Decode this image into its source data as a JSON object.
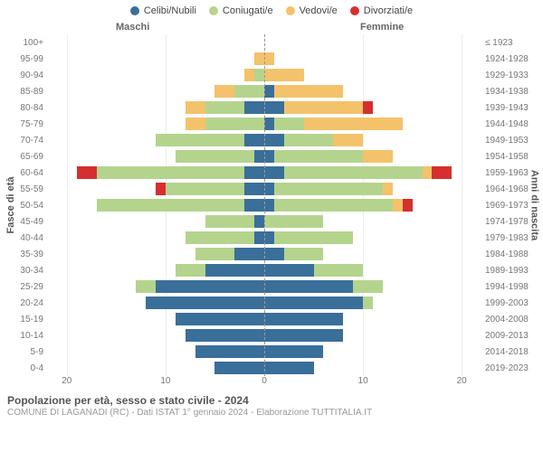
{
  "chart": {
    "type": "population-pyramid",
    "legend": [
      {
        "label": "Celibi/Nubili",
        "color": "#3a6f9a"
      },
      {
        "label": "Coniugati/e",
        "color": "#b4d48d"
      },
      {
        "label": "Vedovi/e",
        "color": "#f4c26b"
      },
      {
        "label": "Divorziati/e",
        "color": "#d62f2f"
      }
    ],
    "header_male": "Maschi",
    "header_female": "Femmine",
    "y_axis_title": "Fasce di età",
    "y2_axis_title": "Anni di nascita",
    "x_axis_max": 22,
    "x_ticks": [
      20,
      10,
      0,
      10,
      20
    ],
    "title": "Popolazione per età, sesso e stato civile - 2024",
    "subtitle": "COMUNE DI LAGANADI (RC) - Dati ISTAT 1° gennaio 2024 - Elaborazione TUTTITALIA.IT",
    "colors": {
      "celibi": "#3a6f9a",
      "coniugati": "#b4d48d",
      "vedovi": "#f4c26b",
      "divorziati": "#d62f2f",
      "grid": "#eeeeee",
      "centerline": "#999999",
      "bg": "#ffffff",
      "text_muted": "#777777"
    },
    "rows": [
      {
        "age": "100+",
        "birth": "≤ 1923",
        "m": {
          "cel": 0,
          "con": 0,
          "ved": 0,
          "div": 0
        },
        "f": {
          "cel": 0,
          "con": 0,
          "ved": 0,
          "div": 0
        }
      },
      {
        "age": "95-99",
        "birth": "1924-1928",
        "m": {
          "cel": 0,
          "con": 0,
          "ved": 1,
          "div": 0
        },
        "f": {
          "cel": 0,
          "con": 0,
          "ved": 1,
          "div": 0
        }
      },
      {
        "age": "90-94",
        "birth": "1929-1933",
        "m": {
          "cel": 0,
          "con": 1,
          "ved": 1,
          "div": 0
        },
        "f": {
          "cel": 0,
          "con": 0,
          "ved": 4,
          "div": 0
        }
      },
      {
        "age": "85-89",
        "birth": "1934-1938",
        "m": {
          "cel": 0,
          "con": 3,
          "ved": 2,
          "div": 0
        },
        "f": {
          "cel": 1,
          "con": 0,
          "ved": 7,
          "div": 0
        }
      },
      {
        "age": "80-84",
        "birth": "1939-1943",
        "m": {
          "cel": 2,
          "con": 4,
          "ved": 2,
          "div": 0
        },
        "f": {
          "cel": 2,
          "con": 0,
          "ved": 8,
          "div": 1
        }
      },
      {
        "age": "75-79",
        "birth": "1944-1948",
        "m": {
          "cel": 0,
          "con": 6,
          "ved": 2,
          "div": 0
        },
        "f": {
          "cel": 1,
          "con": 3,
          "ved": 10,
          "div": 0
        }
      },
      {
        "age": "70-74",
        "birth": "1949-1953",
        "m": {
          "cel": 2,
          "con": 9,
          "ved": 0,
          "div": 0
        },
        "f": {
          "cel": 2,
          "con": 5,
          "ved": 3,
          "div": 0
        }
      },
      {
        "age": "65-69",
        "birth": "1954-1958",
        "m": {
          "cel": 1,
          "con": 8,
          "ved": 0,
          "div": 0
        },
        "f": {
          "cel": 1,
          "con": 9,
          "ved": 3,
          "div": 0
        }
      },
      {
        "age": "60-64",
        "birth": "1959-1963",
        "m": {
          "cel": 2,
          "con": 15,
          "ved": 0,
          "div": 2
        },
        "f": {
          "cel": 2,
          "con": 14,
          "ved": 1,
          "div": 2
        }
      },
      {
        "age": "55-59",
        "birth": "1964-1968",
        "m": {
          "cel": 2,
          "con": 8,
          "ved": 0,
          "div": 1
        },
        "f": {
          "cel": 1,
          "con": 11,
          "ved": 1,
          "div": 0
        }
      },
      {
        "age": "50-54",
        "birth": "1969-1973",
        "m": {
          "cel": 2,
          "con": 15,
          "ved": 0,
          "div": 0
        },
        "f": {
          "cel": 1,
          "con": 12,
          "ved": 1,
          "div": 1
        }
      },
      {
        "age": "45-49",
        "birth": "1974-1978",
        "m": {
          "cel": 1,
          "con": 5,
          "ved": 0,
          "div": 0
        },
        "f": {
          "cel": 0,
          "con": 6,
          "ved": 0,
          "div": 0
        }
      },
      {
        "age": "40-44",
        "birth": "1979-1983",
        "m": {
          "cel": 1,
          "con": 7,
          "ved": 0,
          "div": 0
        },
        "f": {
          "cel": 1,
          "con": 8,
          "ved": 0,
          "div": 0
        }
      },
      {
        "age": "35-39",
        "birth": "1984-1988",
        "m": {
          "cel": 3,
          "con": 4,
          "ved": 0,
          "div": 0
        },
        "f": {
          "cel": 2,
          "con": 4,
          "ved": 0,
          "div": 0
        }
      },
      {
        "age": "30-34",
        "birth": "1989-1993",
        "m": {
          "cel": 6,
          "con": 3,
          "ved": 0,
          "div": 0
        },
        "f": {
          "cel": 5,
          "con": 5,
          "ved": 0,
          "div": 0
        }
      },
      {
        "age": "25-29",
        "birth": "1994-1998",
        "m": {
          "cel": 11,
          "con": 2,
          "ved": 0,
          "div": 0
        },
        "f": {
          "cel": 9,
          "con": 3,
          "ved": 0,
          "div": 0
        }
      },
      {
        "age": "20-24",
        "birth": "1999-2003",
        "m": {
          "cel": 12,
          "con": 0,
          "ved": 0,
          "div": 0
        },
        "f": {
          "cel": 10,
          "con": 1,
          "ved": 0,
          "div": 0
        }
      },
      {
        "age": "15-19",
        "birth": "2004-2008",
        "m": {
          "cel": 9,
          "con": 0,
          "ved": 0,
          "div": 0
        },
        "f": {
          "cel": 8,
          "con": 0,
          "ved": 0,
          "div": 0
        }
      },
      {
        "age": "10-14",
        "birth": "2009-2013",
        "m": {
          "cel": 8,
          "con": 0,
          "ved": 0,
          "div": 0
        },
        "f": {
          "cel": 8,
          "con": 0,
          "ved": 0,
          "div": 0
        }
      },
      {
        "age": "5-9",
        "birth": "2014-2018",
        "m": {
          "cel": 7,
          "con": 0,
          "ved": 0,
          "div": 0
        },
        "f": {
          "cel": 6,
          "con": 0,
          "ved": 0,
          "div": 0
        }
      },
      {
        "age": "0-4",
        "birth": "2019-2023",
        "m": {
          "cel": 5,
          "con": 0,
          "ved": 0,
          "div": 0
        },
        "f": {
          "cel": 5,
          "con": 0,
          "ved": 0,
          "div": 0
        }
      }
    ]
  }
}
